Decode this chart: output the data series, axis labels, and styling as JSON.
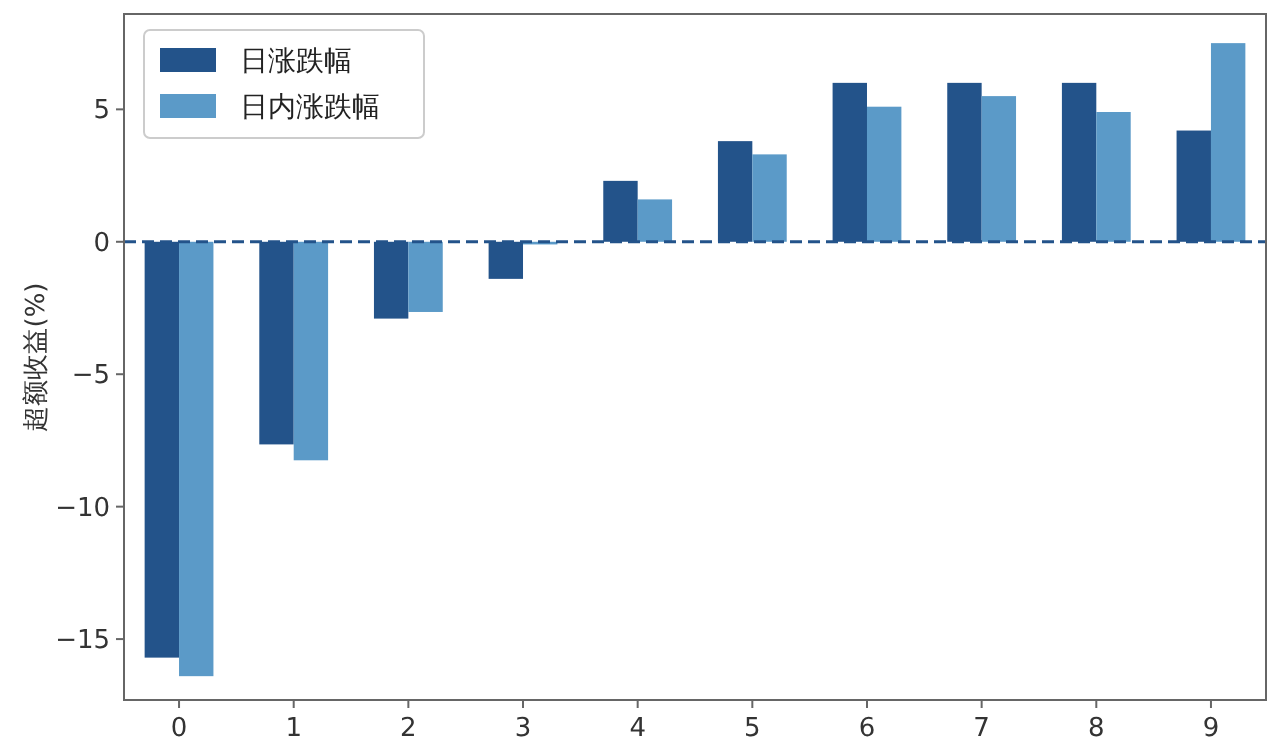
{
  "chart_data": {
    "type": "bar",
    "ylabel": "超额收益(%)",
    "categories": [
      "0",
      "1",
      "2",
      "3",
      "4",
      "5",
      "6",
      "7",
      "8",
      "9"
    ],
    "series": [
      {
        "name": "日涨跌幅",
        "color": "#23538a",
        "values": [
          -15.7,
          -7.65,
          -2.9,
          -1.4,
          2.3,
          3.8,
          6.0,
          6.0,
          6.0,
          4.2
        ]
      },
      {
        "name": "日内涨跌幅",
        "color": "#5b9ac8",
        "values": [
          -16.4,
          -8.25,
          -2.65,
          -0.1,
          1.6,
          3.3,
          5.1,
          5.5,
          4.9,
          7.5
        ]
      }
    ],
    "ylim": [
      -17.3,
      8.6
    ],
    "yticks": [
      {
        "value": -15,
        "label": "−15"
      },
      {
        "value": -10,
        "label": "−10"
      },
      {
        "value": -5,
        "label": "−5"
      },
      {
        "value": 0,
        "label": "0"
      },
      {
        "value": 5,
        "label": "5"
      }
    ],
    "ref_lines": [
      {
        "axis": "y",
        "value": 0,
        "color": "#23538a",
        "line_style": "dashed"
      }
    ],
    "grid": false,
    "legend": "top left"
  }
}
